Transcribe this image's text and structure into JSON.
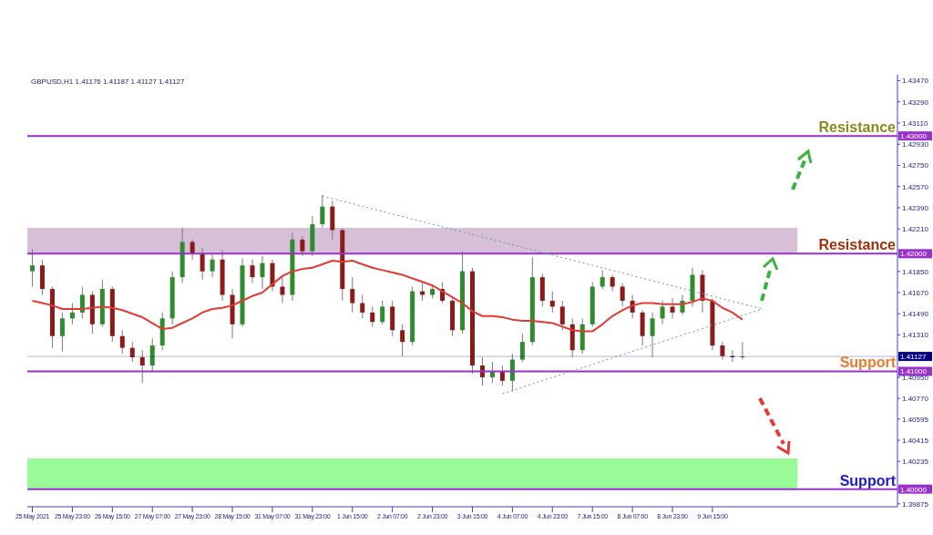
{
  "chart_data": {
    "type": "candlestick",
    "title": "GBPUSD,H1  1.41176 1.41187 1.41127 1.41127",
    "categories": [
      "25 May 2021",
      null,
      null,
      null,
      "25 May 23:00",
      null,
      null,
      null,
      "26 May 15:00",
      null,
      null,
      null,
      "27 May 07:00",
      null,
      null,
      null,
      "27 May 23:00",
      null,
      null,
      null,
      "28 May 15:00",
      null,
      null,
      null,
      "31 May 07:00",
      null,
      null,
      null,
      "31 May 23:00",
      null,
      null,
      null,
      "1 Jun 15:00",
      null,
      null,
      null,
      "2 Jun 07:00",
      null,
      null,
      null,
      "2 Jun 23:00",
      null,
      null,
      null,
      "3 Jun 15:00",
      null,
      null,
      null,
      "4 Jun 07:00",
      null,
      null,
      null,
      "4 Jun 23:00",
      null,
      null,
      null,
      "7 Jun 15:00",
      null,
      null,
      null,
      "8 Jun 07:00",
      null,
      null,
      null,
      "8 Jun 23:00",
      null,
      null,
      null,
      "9 Jun 15:00",
      null,
      null,
      null,
      null,
      null,
      null,
      null,
      null,
      null,
      null,
      null,
      null,
      null,
      null,
      null,
      null,
      null,
      null
    ],
    "ohlc": [
      [
        1.4185,
        1.4204,
        1.4172,
        1.419
      ],
      [
        1.419,
        1.4195,
        1.4165,
        1.417
      ],
      [
        1.417,
        1.4172,
        1.412,
        1.413
      ],
      [
        1.413,
        1.415,
        1.4117,
        1.4145
      ],
      [
        1.4145,
        1.4158,
        1.414,
        1.415
      ],
      [
        1.415,
        1.4172,
        1.4145,
        1.4165
      ],
      [
        1.4165,
        1.4168,
        1.4132,
        1.414
      ],
      [
        1.414,
        1.4178,
        1.4138,
        1.417
      ],
      [
        1.417,
        1.4172,
        1.4125,
        1.413
      ],
      [
        1.413,
        1.4135,
        1.4115,
        1.412
      ],
      [
        1.412,
        1.4125,
        1.4108,
        1.4112
      ],
      [
        1.4112,
        1.4118,
        1.409,
        1.4105
      ],
      [
        1.4105,
        1.4128,
        1.41,
        1.4122
      ],
      [
        1.4122,
        1.415,
        1.4118,
        1.4145
      ],
      [
        1.4145,
        1.4185,
        1.414,
        1.418
      ],
      [
        1.418,
        1.4222,
        1.4175,
        1.421
      ],
      [
        1.421,
        1.4212,
        1.4195,
        1.42
      ],
      [
        1.42,
        1.4205,
        1.4178,
        1.4185
      ],
      [
        1.4185,
        1.42,
        1.418,
        1.4195
      ],
      [
        1.4195,
        1.4203,
        1.416,
        1.4165
      ],
      [
        1.4165,
        1.417,
        1.4128,
        1.414
      ],
      [
        1.414,
        1.4196,
        1.4138,
        1.419
      ],
      [
        1.419,
        1.4195,
        1.4175,
        1.418
      ],
      [
        1.418,
        1.4198,
        1.417,
        1.4192
      ],
      [
        1.4192,
        1.4195,
        1.4168,
        1.4172
      ],
      [
        1.4172,
        1.4182,
        1.4158,
        1.4165
      ],
      [
        1.4165,
        1.4218,
        1.416,
        1.4212
      ],
      [
        1.4212,
        1.4215,
        1.4198,
        1.4202
      ],
      [
        1.4202,
        1.4232,
        1.4198,
        1.4225
      ],
      [
        1.4225,
        1.425,
        1.4222,
        1.424
      ],
      [
        1.424,
        1.4245,
        1.4212,
        1.422
      ],
      [
        1.422,
        1.4222,
        1.416,
        1.417
      ],
      [
        1.417,
        1.418,
        1.415,
        1.4158
      ],
      [
        1.4158,
        1.4165,
        1.4145,
        1.415
      ],
      [
        1.415,
        1.4155,
        1.4138,
        1.4142
      ],
      [
        1.4142,
        1.416,
        1.414,
        1.4155
      ],
      [
        1.4155,
        1.416,
        1.413,
        1.4135
      ],
      [
        1.4135,
        1.414,
        1.4113,
        1.4125
      ],
      [
        1.4125,
        1.4172,
        1.4122,
        1.4168
      ],
      [
        1.4168,
        1.4175,
        1.416,
        1.4165
      ],
      [
        1.4165,
        1.4174,
        1.4162,
        1.417
      ],
      [
        1.417,
        1.4176,
        1.4158,
        1.416
      ],
      [
        1.416,
        1.4162,
        1.413,
        1.4135
      ],
      [
        1.4135,
        1.4202,
        1.4132,
        1.4185
      ],
      [
        1.4185,
        1.4188,
        1.4098,
        1.4105
      ],
      [
        1.4105,
        1.4112,
        1.4088,
        1.4095
      ],
      [
        1.4095,
        1.4108,
        1.409,
        1.41
      ],
      [
        1.41,
        1.4105,
        1.4088,
        1.4092
      ],
      [
        1.4092,
        1.4115,
        1.4083,
        1.411
      ],
      [
        1.411,
        1.4132,
        1.4108,
        1.4125
      ],
      [
        1.4125,
        1.4197,
        1.4122,
        1.418
      ],
      [
        1.418,
        1.4183,
        1.4155,
        1.416
      ],
      [
        1.416,
        1.4168,
        1.415,
        1.4155
      ],
      [
        1.4155,
        1.416,
        1.4135,
        1.414
      ],
      [
        1.414,
        1.4145,
        1.4112,
        1.4118
      ],
      [
        1.4118,
        1.4145,
        1.4115,
        1.414
      ],
      [
        1.414,
        1.4176,
        1.4138,
        1.4172
      ],
      [
        1.4172,
        1.4186,
        1.417,
        1.418
      ],
      [
        1.418,
        1.4182,
        1.4168,
        1.4172
      ],
      [
        1.4172,
        1.4175,
        1.4155,
        1.416
      ],
      [
        1.416,
        1.4165,
        1.4145,
        1.415
      ],
      [
        1.415,
        1.4152,
        1.4122,
        1.413
      ],
      [
        1.413,
        1.415,
        1.4112,
        1.4145
      ],
      [
        1.4145,
        1.416,
        1.414,
        1.4155
      ],
      [
        1.4155,
        1.4162,
        1.4145,
        1.415
      ],
      [
        1.415,
        1.4165,
        1.4148,
        1.416
      ],
      [
        1.416,
        1.4188,
        1.4155,
        1.4182
      ],
      [
        1.4182,
        1.4186,
        1.415,
        1.416
      ],
      [
        1.416,
        1.4162,
        1.4118,
        1.4122
      ],
      [
        1.4122,
        1.4125,
        1.411,
        1.4113
      ],
      [
        1.4113,
        1.4118,
        1.4108,
        1.4112
      ],
      [
        1.4112,
        1.4125,
        1.411,
        1.41127
      ],
      null,
      null,
      null,
      null,
      null,
      null,
      null,
      null,
      null,
      null,
      null,
      null,
      null,
      null,
      null
    ],
    "series": [
      {
        "type": "line",
        "color": "#e53935",
        "values": [
          1.416,
          1.4158,
          1.4156,
          1.4153,
          1.4153,
          1.4153,
          1.4154,
          1.4155,
          1.4154,
          1.4152,
          1.4149,
          1.4146,
          1.4141,
          1.4136,
          1.4137,
          1.4141,
          1.4145,
          1.415,
          1.4153,
          1.4154,
          1.4156,
          1.416,
          1.4164,
          1.4167,
          1.4174,
          1.4181,
          1.4185,
          1.4187,
          1.4188,
          1.4191,
          1.4194,
          1.4193,
          1.4194,
          1.4191,
          1.4188,
          1.4186,
          1.4184,
          1.4182,
          1.4179,
          1.4176,
          1.4173,
          1.4168,
          1.4163,
          1.4158,
          1.4151,
          1.4147,
          1.4147,
          1.4146,
          1.4144,
          1.4143,
          1.4143,
          1.4142,
          1.4141,
          1.4138,
          1.4135,
          1.4134,
          1.4134,
          1.414,
          1.4147,
          1.4152,
          1.4156,
          1.4158,
          1.4158,
          1.4157,
          1.4157,
          1.4157,
          1.4159,
          1.4162,
          1.416,
          1.4154,
          1.415,
          1.4144,
          null,
          null,
          null,
          null,
          null,
          null,
          null,
          null,
          null,
          null,
          null,
          null,
          null,
          null,
          null
        ]
      },
      {
        "type": "line",
        "color": "#5f9ea0",
        "line_style": "dotted",
        "values": [
          null,
          null,
          null,
          null,
          null,
          null,
          null,
          null,
          null,
          null,
          null,
          null,
          null,
          null,
          null,
          null,
          null,
          null,
          null,
          null,
          null,
          null,
          null,
          null,
          null,
          null,
          null,
          null,
          null,
          1.4249,
          null,
          null,
          null,
          null,
          null,
          null,
          null,
          null,
          null,
          null,
          null,
          null,
          null,
          null,
          null,
          null,
          null,
          null,
          null,
          null,
          null,
          null,
          null,
          null,
          null,
          null,
          null,
          null,
          null,
          null,
          null,
          null,
          null,
          null,
          null,
          null,
          null,
          null,
          null,
          null,
          null,
          null,
          null,
          1.4153,
          null,
          null,
          null,
          null,
          null,
          null,
          null,
          null,
          null,
          null,
          null,
          null,
          null
        ]
      },
      {
        "type": "line",
        "color": "#5f9ea0",
        "line_style": "dotted",
        "values": [
          null,
          null,
          null,
          null,
          null,
          null,
          null,
          null,
          null,
          null,
          null,
          null,
          null,
          null,
          null,
          null,
          null,
          null,
          null,
          null,
          null,
          null,
          null,
          null,
          null,
          null,
          null,
          null,
          null,
          null,
          null,
          null,
          null,
          null,
          null,
          null,
          null,
          null,
          null,
          null,
          null,
          null,
          null,
          null,
          null,
          null,
          null,
          1.4081,
          null,
          null,
          null,
          null,
          null,
          null,
          null,
          null,
          null,
          null,
          null,
          null,
          null,
          null,
          null,
          null,
          null,
          null,
          null,
          null,
          null,
          null,
          null,
          null,
          null,
          1.4153,
          null,
          null,
          null,
          null,
          null,
          null,
          null,
          null,
          null,
          null,
          null,
          null,
          null
        ]
      }
    ],
    "ylim": [
      1.3985,
      1.4352
    ],
    "yticks": [
      {
        "value": 1.4347,
        "label": "1.43470"
      },
      {
        "value": 1.4329,
        "label": "1.43290"
      },
      {
        "value": 1.4311,
        "label": "1.43110"
      },
      {
        "value": 1.4293,
        "label": "1.42930"
      },
      {
        "value": 1.4275,
        "label": "1.42750"
      },
      {
        "value": 1.4257,
        "label": "1.42570"
      },
      {
        "value": 1.4239,
        "label": "1.42390"
      },
      {
        "value": 1.4221,
        "label": "1.42210"
      },
      {
        "value": 1.4185,
        "label": "1.41850"
      },
      {
        "value": 1.4167,
        "label": "1.41670"
      },
      {
        "value": 1.4149,
        "label": "1.41490"
      },
      {
        "value": 1.4131,
        "label": "1.41310"
      },
      {
        "value": 1.4095,
        "label": "1.40950"
      },
      {
        "value": 1.4077,
        "label": "1.40770"
      },
      {
        "value": 1.40595,
        "label": "1.40595"
      },
      {
        "value": 1.40415,
        "label": "1.40415"
      },
      {
        "value": 1.40235,
        "label": "1.40235"
      },
      {
        "value": 1.39875,
        "label": "1.39875"
      }
    ],
    "ref_lines": [
      {
        "axis": "y",
        "value": 1.43,
        "label": "1.43000",
        "color": "#9932cc"
      },
      {
        "axis": "y",
        "value": 1.42,
        "label": "1.42000",
        "color": "#9932cc"
      },
      {
        "axis": "y",
        "value": 1.41127,
        "label": "1.41127",
        "color": "#000080"
      },
      {
        "axis": "y",
        "value": 1.41,
        "label": "1.41000",
        "color": "#9932cc"
      },
      {
        "axis": "y",
        "value": 1.4,
        "label": "1.40000",
        "color": "#9932cc"
      }
    ],
    "bands": [
      {
        "axis": "y",
        "from": 1.42,
        "to": 1.4222,
        "color": "#d8bfd8"
      },
      {
        "axis": "y",
        "from": 1.4,
        "to": 1.4026,
        "color": "#98fb98"
      }
    ],
    "annotations": [
      {
        "text": "Resistance",
        "y": 1.43
      },
      {
        "text": "Resistance",
        "y": 1.42
      },
      {
        "text": "Support",
        "y": 1.41
      },
      {
        "text": "Support",
        "y": 1.4
      }
    ]
  }
}
